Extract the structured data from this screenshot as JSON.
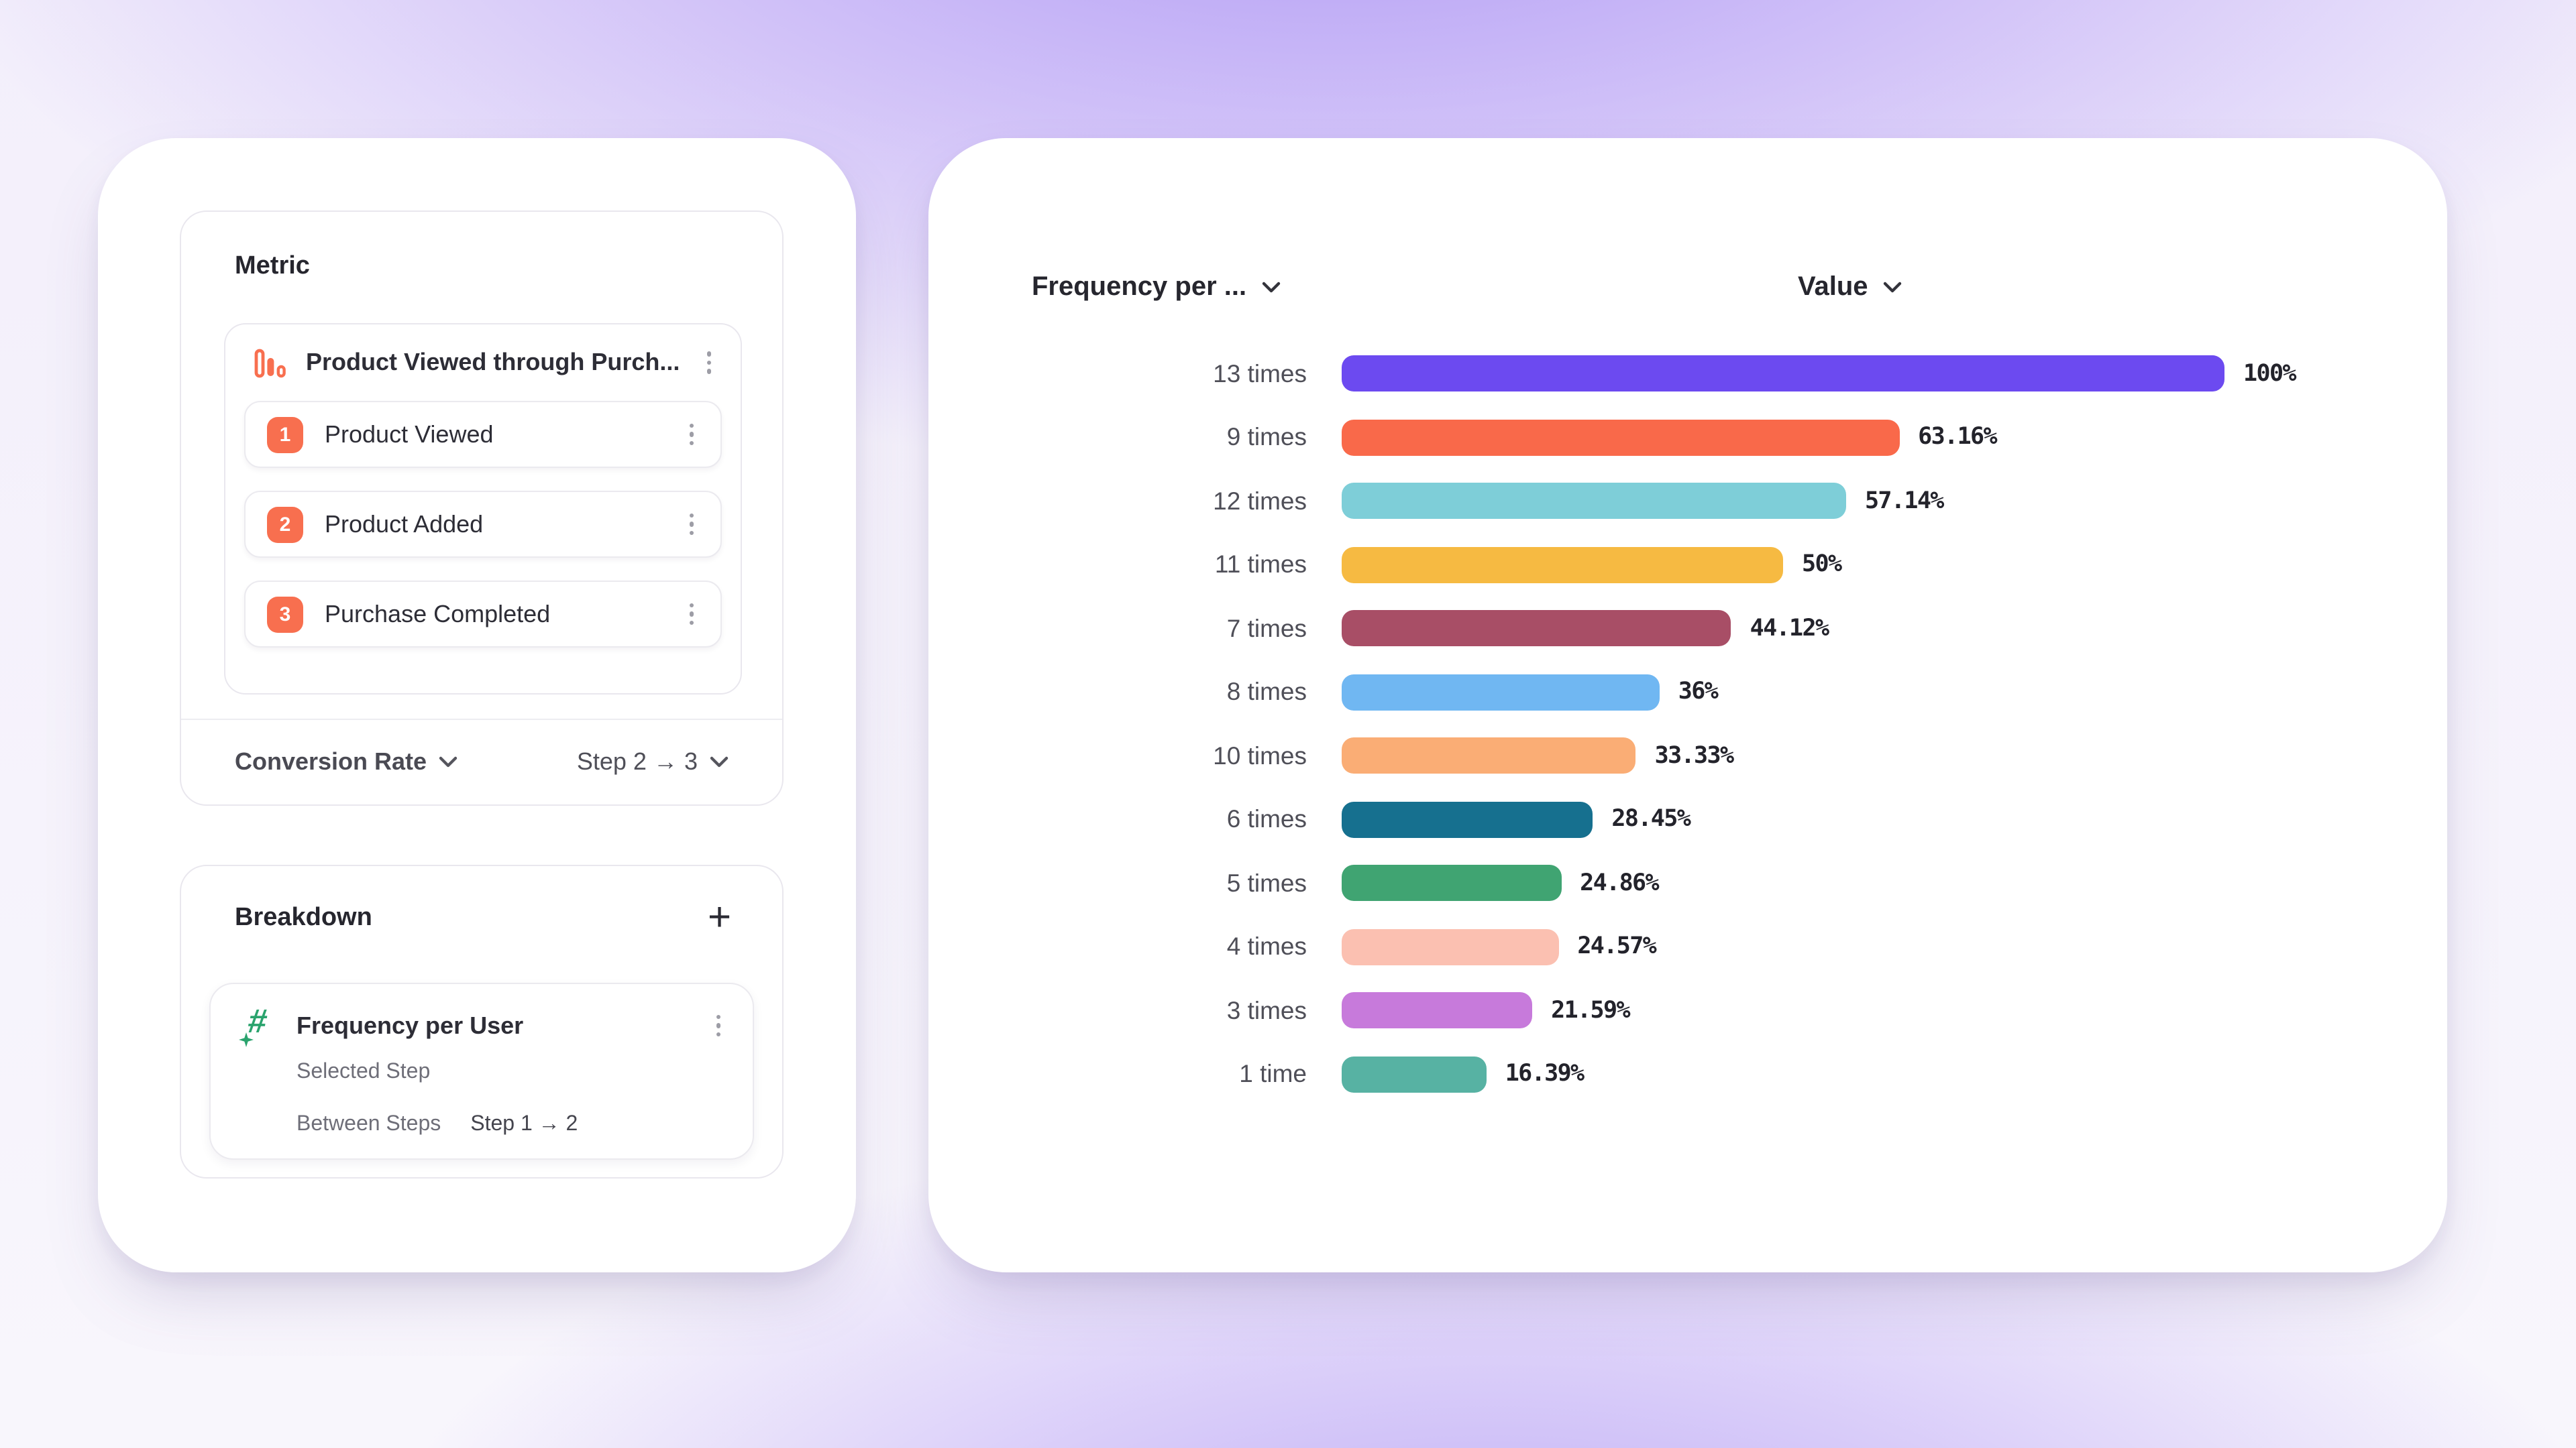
{
  "colors": {
    "accent_purple": "#8b6cf0",
    "coral": "#f86f4f",
    "hash_green": "#2aa36d",
    "text_dark": "#26262e",
    "text_grey": "#4f4f58"
  },
  "left_panel": {
    "metric_card": {
      "title": "Metric",
      "funnel": {
        "icon": "bar-chart-icon",
        "name": "Product Viewed through Purch...",
        "steps": [
          {
            "number": "1",
            "label": "Product Viewed"
          },
          {
            "number": "2",
            "label": "Product Added"
          },
          {
            "number": "3",
            "label": "Purchase Completed"
          }
        ]
      },
      "footer": {
        "metric_type": "Conversion Rate",
        "step_range": "Step 2 → 3"
      }
    },
    "breakdown_card": {
      "title": "Breakdown",
      "add_button": "+",
      "item": {
        "icon": "hash-icon",
        "name": "Frequency per User",
        "selected_step_label": "Selected Step",
        "between_steps_label": "Between Steps",
        "between_steps_value": "Step 1 → 2"
      }
    }
  },
  "chart_panel": {
    "category_header": "Frequency per ...",
    "value_header": "Value"
  },
  "chart_data": {
    "type": "bar",
    "orientation": "horizontal",
    "title": "Frequency per User breakdown",
    "xlabel": "Value",
    "ylabel": "Frequency per User",
    "xlim": [
      0,
      100
    ],
    "grid": false,
    "categories": [
      "13 times",
      "9 times",
      "12 times",
      "11 times",
      "7 times",
      "8 times",
      "10 times",
      "6 times",
      "5 times",
      "4 times",
      "3 times",
      "1 time"
    ],
    "values": [
      100,
      63.16,
      57.14,
      50,
      44.12,
      36,
      33.33,
      28.45,
      24.86,
      24.57,
      21.59,
      16.39
    ],
    "value_labels": [
      "100%",
      "63.16%",
      "57.14%",
      "50%",
      "44.12%",
      "36%",
      "33.33%",
      "28.45%",
      "24.86%",
      "24.57%",
      "21.59%",
      "16.39%"
    ],
    "bar_colors": [
      "#6c4af0",
      "#f9694a",
      "#7eced8",
      "#f6ba42",
      "#a84e66",
      "#70b7f2",
      "#faad75",
      "#16708f",
      "#40a472",
      "#fbc0b1",
      "#c77adb",
      "#57b2a3"
    ]
  }
}
